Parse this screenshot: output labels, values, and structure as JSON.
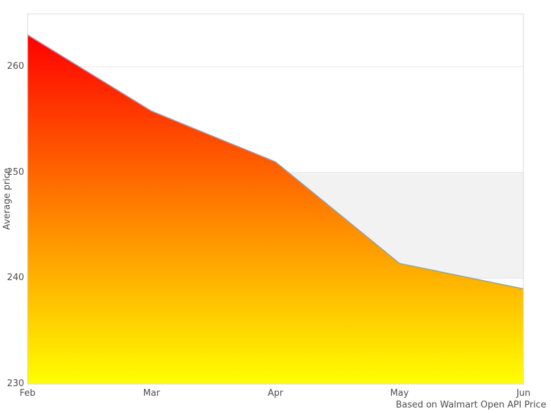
{
  "chart_data": {
    "type": "area",
    "title": "",
    "xlabel": "",
    "ylabel": "Average price",
    "caption": "Based on Walmart Open API Price",
    "categories": [
      "Feb",
      "Mar",
      "Apr",
      "May",
      "Jun"
    ],
    "values": [
      263,
      255.8,
      251,
      241.4,
      239
    ],
    "ylim": [
      230,
      265
    ],
    "yticks": [
      230,
      240,
      250,
      260
    ],
    "grid": true,
    "legend": "none",
    "plot_band": {
      "from": 240,
      "to": 250,
      "color": "#f2f2f2"
    },
    "colors": {
      "line": "#7ea6cf",
      "area_gradient_top": "#ff0000",
      "area_gradient_bottom": "#ffff00",
      "grid": "#e6e6e6",
      "border": "#d9d9d9",
      "tick_label": "#4d4d4d",
      "caption_text": "#4d4d4d",
      "background": "#ffffff"
    }
  }
}
